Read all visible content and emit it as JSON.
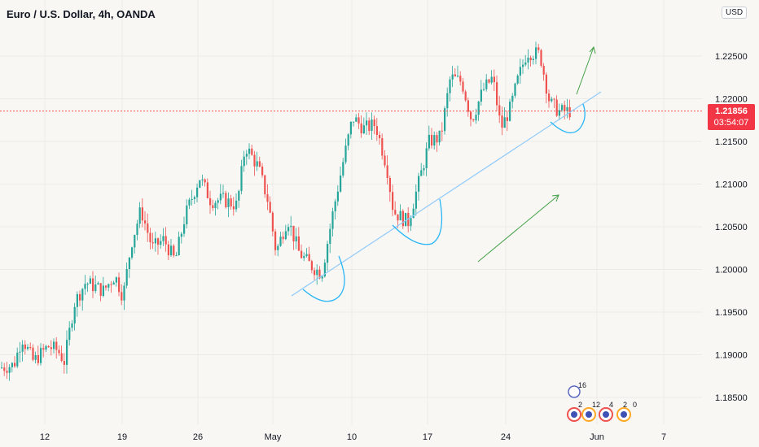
{
  "header": {
    "title": "Euro / U.S. Dollar, 4h, OANDA",
    "currency_badge": "USD"
  },
  "last_price": {
    "value": "1.21856",
    "countdown": "03:54:07",
    "color": "#f23645"
  },
  "colors": {
    "up": "#26a69a",
    "down": "#ef5350",
    "background": "#f8f7f4",
    "trendline": "#90caf9",
    "arrow": "#43a047",
    "curve": "#29b6f6"
  },
  "events": {
    "top_badge": "16",
    "badges": [
      "2",
      "12",
      "4",
      "2",
      "0"
    ]
  },
  "chart_data": {
    "type": "candlestick",
    "title": "Euro / U.S. Dollar, 4h, OANDA",
    "xlabel": "",
    "ylabel": "",
    "ylim": [
      1.1825,
      1.2275
    ],
    "ytick_labels": [
      "1.18500",
      "1.19000",
      "1.19500",
      "1.20000",
      "1.20500",
      "1.21000",
      "1.21500",
      "1.22000",
      "1.22500"
    ],
    "xtick_labels": [
      "12",
      "19",
      "26",
      "May",
      "10",
      "17",
      "24",
      "Jun",
      "7"
    ],
    "grid": true,
    "last_price": 1.21856,
    "close_path": [
      [
        0,
        1.1885
      ],
      [
        16,
        1.1888
      ],
      [
        26,
        1.192
      ],
      [
        40,
        1.1892
      ],
      [
        58,
        1.191
      ],
      [
        70,
        1.1905
      ],
      [
        78,
        1.1892
      ],
      [
        90,
        1.196
      ],
      [
        104,
        1.1985
      ],
      [
        126,
        1.1975
      ],
      [
        140,
        1.1993
      ],
      [
        150,
        1.1968
      ],
      [
        160,
        1.203
      ],
      [
        172,
        1.207
      ],
      [
        186,
        1.2025
      ],
      [
        200,
        1.2035
      ],
      [
        214,
        1.201
      ],
      [
        226,
        1.2062
      ],
      [
        244,
        1.2108
      ],
      [
        258,
        1.208
      ],
      [
        272,
        1.2082
      ],
      [
        290,
        1.2075
      ],
      [
        300,
        1.2145
      ],
      [
        316,
        1.212
      ],
      [
        328,
        1.208
      ],
      [
        338,
        1.202
      ],
      [
        352,
        1.206
      ],
      [
        366,
        1.202
      ],
      [
        380,
        1.2005
      ],
      [
        394,
        1.1995
      ],
      [
        408,
        1.2068
      ],
      [
        420,
        1.2125
      ],
      [
        432,
        1.2178
      ],
      [
        446,
        1.2165
      ],
      [
        460,
        1.217
      ],
      [
        474,
        1.212
      ],
      [
        482,
        1.2068
      ],
      [
        500,
        1.2055
      ],
      [
        514,
        1.2105
      ],
      [
        526,
        1.215
      ],
      [
        540,
        1.2155
      ],
      [
        552,
        1.2225
      ],
      [
        566,
        1.222
      ],
      [
        578,
        1.2175
      ],
      [
        592,
        1.221
      ],
      [
        604,
        1.2225
      ],
      [
        614,
        1.2165
      ],
      [
        626,
        1.219
      ],
      [
        634,
        1.222
      ],
      [
        646,
        1.2255
      ],
      [
        662,
        1.2252
      ],
      [
        674,
        1.2195
      ],
      [
        686,
        1.2185
      ],
      [
        700,
        1.21856
      ]
    ]
  }
}
